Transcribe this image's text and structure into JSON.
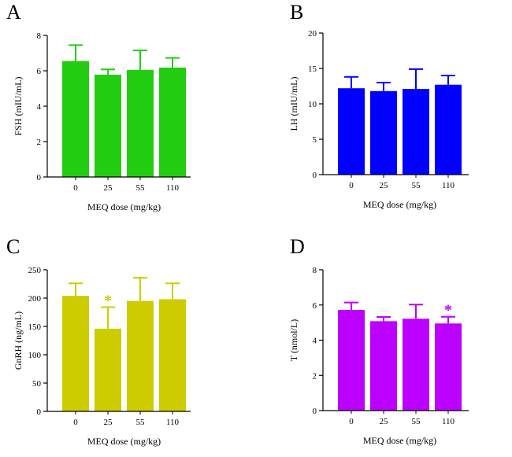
{
  "chart_data": [
    {
      "type": "bar",
      "panel_label": "A",
      "categories": [
        "0",
        "25",
        "55",
        "110"
      ],
      "values": [
        6.55,
        5.78,
        6.05,
        6.18
      ],
      "errors": [
        0.9,
        0.3,
        1.1,
        0.55
      ],
      "ylim": [
        0,
        8
      ],
      "yticks": [
        "0",
        "2",
        "4",
        "6",
        "8"
      ],
      "ylabel": "FSH (mIU/mL)",
      "xlabel": "MEQ dose (mg/kg)",
      "color": "#22cc11",
      "significance": [
        "",
        "",
        "",
        ""
      ]
    },
    {
      "type": "bar",
      "panel_label": "B",
      "categories": [
        "0",
        "25",
        "55",
        "110"
      ],
      "values": [
        12.2,
        11.8,
        12.1,
        12.7
      ],
      "errors": [
        1.6,
        1.2,
        2.8,
        1.3
      ],
      "ylim": [
        0,
        20
      ],
      "yticks": [
        "0",
        "5",
        "10",
        "15",
        "20"
      ],
      "ylabel": "LH (mIU/mL)",
      "xlabel": "MEQ dose (mg/kg)",
      "color": "#0000ff",
      "significance": [
        "",
        "",
        "",
        ""
      ]
    },
    {
      "type": "bar",
      "panel_label": "C",
      "categories": [
        "0",
        "25",
        "55",
        "110"
      ],
      "values": [
        204,
        146,
        195,
        198
      ],
      "errors": [
        22,
        38,
        41,
        28
      ],
      "ylim": [
        0,
        250
      ],
      "yticks": [
        "0",
        "50",
        "100",
        "150",
        "200",
        "250"
      ],
      "ylabel": "GnRH (ng/mL)",
      "xlabel": "MEQ dose (mg/kg)",
      "color": "#cccc00",
      "significance": [
        "",
        "*",
        "",
        ""
      ]
    },
    {
      "type": "bar",
      "panel_label": "D",
      "categories": [
        "0",
        "25",
        "55",
        "110"
      ],
      "values": [
        5.72,
        5.08,
        5.22,
        4.95
      ],
      "errors": [
        0.42,
        0.24,
        0.8,
        0.38
      ],
      "ylim": [
        0,
        8
      ],
      "yticks": [
        "0",
        "2",
        "4",
        "6",
        "8"
      ],
      "ylabel": "T (nmol/L)",
      "xlabel": "MEQ dose (mg/kg)",
      "color": "#bb00ff",
      "significance": [
        "",
        "",
        "",
        "*"
      ]
    }
  ]
}
